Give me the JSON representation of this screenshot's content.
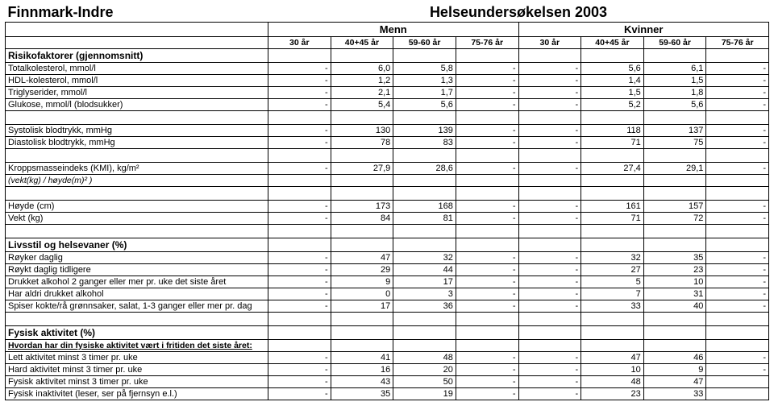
{
  "title_left": "Finnmark-Indre",
  "title_right": "Helseundersøkelsen 2003",
  "gender_labels": {
    "men": "Menn",
    "women": "Kvinner"
  },
  "age_labels": [
    "30 år",
    "40+45 år",
    "59-60 år",
    "75-76 år",
    "30 år",
    "40+45 år",
    "59-60 år",
    "75-76 år"
  ],
  "sections": {
    "risk": {
      "header": "Risikofaktorer  (gjennomsnitt)",
      "rows": [
        {
          "label": "Totalkolesterol,   mmol/l",
          "v": [
            "-",
            "6,0",
            "5,8",
            "-",
            "-",
            "5,6",
            "6,1",
            "-"
          ]
        },
        {
          "label": "HDL-kolesterol,   mmol/l",
          "v": [
            "-",
            "1,2",
            "1,3",
            "-",
            "-",
            "1,4",
            "1,5",
            "-"
          ]
        },
        {
          "label": "Triglyserider,   mmol/l",
          "v": [
            "-",
            "2,1",
            "1,7",
            "-",
            "-",
            "1,5",
            "1,8",
            "-"
          ]
        },
        {
          "label": "Glukose, mmol/l   (blodsukker)",
          "v": [
            "-",
            "5,4",
            "5,6",
            "-",
            "-",
            "5,2",
            "5,6",
            "-"
          ]
        }
      ],
      "bp": [
        {
          "label": "Systolisk blodtrykk,   mmHg",
          "v": [
            "-",
            "130",
            "139",
            "-",
            "-",
            "118",
            "137",
            "-"
          ]
        },
        {
          "label": "Diastolisk blodtrykk,   mmHg",
          "v": [
            "-",
            "78",
            "83",
            "-",
            "-",
            "71",
            "75",
            "-"
          ]
        }
      ],
      "kmi": {
        "label": "Kroppsmasseindeks   (KMI),   kg/m²",
        "v": [
          "-",
          "27,9",
          "28,6",
          "-",
          "-",
          "27,4",
          "29,1",
          "-"
        ]
      },
      "kmi_note": "(vekt(kg) / høyde(m)² )",
      "hw": [
        {
          "label": "Høyde (cm)",
          "v": [
            "-",
            "173",
            "168",
            "-",
            "-",
            "161",
            "157",
            "-"
          ]
        },
        {
          "label": "Vekt (kg)",
          "v": [
            "-",
            "84",
            "81",
            "-",
            "-",
            "71",
            "72",
            "-"
          ]
        }
      ]
    },
    "lifestyle": {
      "header": "Livsstil og helsevaner  (%)",
      "rows": [
        {
          "label": "Røyker daglig",
          "v": [
            "-",
            "47",
            "32",
            "-",
            "-",
            "32",
            "35",
            "-"
          ]
        },
        {
          "label": "Røykt daglig tidligere",
          "v": [
            "-",
            "29",
            "44",
            "-",
            "-",
            "27",
            "23",
            "-"
          ]
        },
        {
          "label": "Drukket alkohol 2 ganger eller mer pr. uke det siste året",
          "v": [
            "-",
            "9",
            "17",
            "-",
            "-",
            "5",
            "10",
            "-"
          ]
        },
        {
          "label": "Har aldri drukket alkohol",
          "v": [
            "-",
            "0",
            "3",
            "-",
            "-",
            "7",
            "31",
            "-"
          ]
        },
        {
          "label": "Spiser kokte/rå grønnsaker, salat,  1-3 ganger eller mer pr. dag",
          "v": [
            "-",
            "17",
            "36",
            "-",
            "-",
            "33",
            "40",
            "-"
          ]
        }
      ]
    },
    "activity": {
      "header": "Fysisk aktivitet   (%)",
      "sub": "Hvordan har din fysiske aktivitet vært i fritiden det siste året:",
      "rows": [
        {
          "label": "Lett aktivitet minst 3 timer pr. uke",
          "v": [
            "-",
            "41",
            "48",
            "-",
            "-",
            "47",
            "46",
            "-"
          ]
        },
        {
          "label": "Hard aktivitet minst 3 timer pr. uke",
          "v": [
            "-",
            "16",
            "20",
            "-",
            "-",
            "10",
            "9",
            "-"
          ]
        },
        {
          "label": "Fysisk aktivitet minst 3 timer pr. uke",
          "v": [
            "-",
            "43",
            "50",
            "-",
            "-",
            "48",
            "47",
            ""
          ]
        },
        {
          "label": "Fysisk inaktivitet  (leser, ser på fjernsyn e.l.)",
          "v": [
            "-",
            "35",
            "19",
            "-",
            "-",
            "23",
            "33",
            ""
          ]
        }
      ]
    }
  }
}
